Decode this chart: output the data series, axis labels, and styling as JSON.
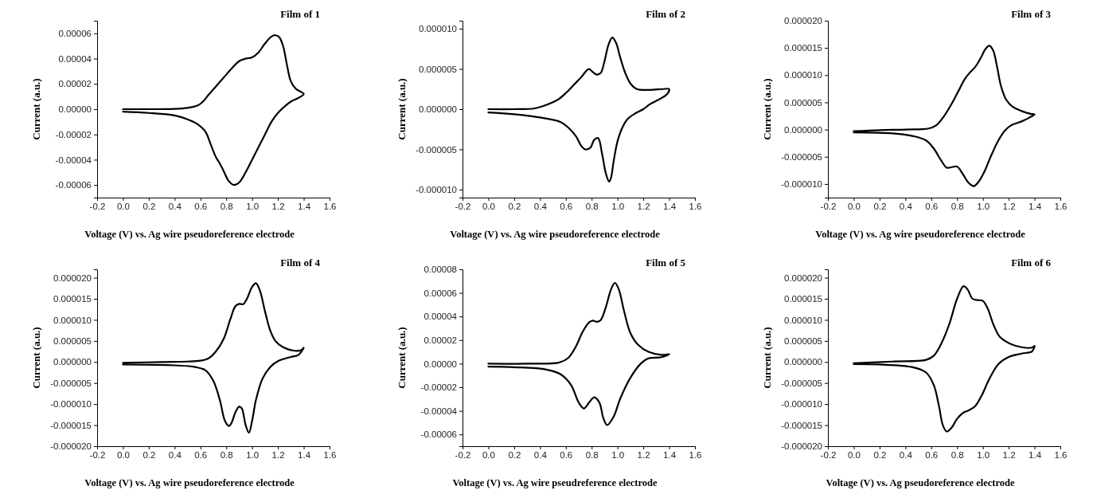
{
  "chart_data": [
    {
      "type": "line",
      "title": "Film of 1",
      "xlabel": "Voltage (V) vs. Ag wire pseudoreference electrode",
      "ylabel": "Current (a.u.)",
      "xlim": [
        -0.2,
        1.6
      ],
      "ylim": [
        -7e-05,
        7e-05
      ],
      "xticks": [
        {
          "value": -0.2,
          "label": "-0.2"
        },
        {
          "value": 0,
          "label": "0.0"
        },
        {
          "value": 0.2,
          "label": "0.2"
        },
        {
          "value": 0.4,
          "label": "0.4"
        },
        {
          "value": 0.6,
          "label": "0.6"
        },
        {
          "value": 0.8,
          "label": "0.8"
        },
        {
          "value": 1,
          "label": "1.0"
        },
        {
          "value": 1.2,
          "label": "1.2"
        },
        {
          "value": 1.4,
          "label": "1.4"
        },
        {
          "value": 1.6,
          "label": "1.6"
        }
      ],
      "yticks": [
        {
          "value": -6e-05,
          "label": "-0.00006"
        },
        {
          "value": -4e-05,
          "label": "-0.00004"
        },
        {
          "value": -2e-05,
          "label": "-0.00002"
        },
        {
          "value": 0,
          "label": "0.00000"
        },
        {
          "value": 2e-05,
          "label": "0.00002"
        },
        {
          "value": 4e-05,
          "label": "0.00004"
        },
        {
          "value": 6e-05,
          "label": "0.00006"
        }
      ],
      "series": [
        {
          "color": "#000000",
          "x": [
            0,
            0.2,
            0.4,
            0.5,
            0.58,
            0.62,
            0.66,
            0.72,
            0.78,
            0.84,
            0.9,
            0.95,
            1.0,
            1.05,
            1.1,
            1.15,
            1.18,
            1.21,
            1.24,
            1.27,
            1.3,
            1.34,
            1.4,
            1.36,
            1.3,
            1.25,
            1.2,
            1.15,
            1.1,
            1.05,
            1.0,
            0.95,
            0.9,
            0.86,
            0.82,
            0.78,
            0.75,
            0.72,
            0.68,
            0.64,
            0.58,
            0.5,
            0.4,
            0.2,
            0
          ],
          "values": [
            0,
            0,
            2e-07,
            1e-06,
            3e-06,
            6e-06,
            1.1e-05,
            1.8e-05,
            2.5e-05,
            3.2e-05,
            3.8e-05,
            4e-05,
            4.1e-05,
            4.5e-05,
            5.2e-05,
            5.75e-05,
            5.85e-05,
            5.7e-05,
            5e-05,
            3.5e-05,
            2.2e-05,
            1.6e-05,
            1.2e-05,
            9e-06,
            6e-06,
            2e-06,
            -3e-06,
            -1e-05,
            -2e-05,
            -3e-05,
            -4e-05,
            -5e-05,
            -5.8e-05,
            -6e-05,
            -5.7e-05,
            -4.9e-05,
            -4.3e-05,
            -3.8e-05,
            -2.8e-05,
            -1.8e-05,
            -1.2e-05,
            -8e-06,
            -5e-06,
            -3e-06,
            -2e-06
          ]
        }
      ]
    },
    {
      "type": "line",
      "title": "Film of 2",
      "xlabel": "Voltage (V) vs. Ag wire pseudoreference electrode",
      "ylabel": "Current (a.u.)",
      "xlim": [
        -0.2,
        1.6
      ],
      "ylim": [
        -1.1e-05,
        1.1e-05
      ],
      "xticks": [
        {
          "value": -0.2,
          "label": "-0.2"
        },
        {
          "value": 0,
          "label": "0.0"
        },
        {
          "value": 0.2,
          "label": "0.2"
        },
        {
          "value": 0.4,
          "label": "0.4"
        },
        {
          "value": 0.6,
          "label": "0.6"
        },
        {
          "value": 0.8,
          "label": "0.8"
        },
        {
          "value": 1,
          "label": "1.0"
        },
        {
          "value": 1.2,
          "label": "1.2"
        },
        {
          "value": 1.4,
          "label": "1.4"
        },
        {
          "value": 1.6,
          "label": "1.6"
        }
      ],
      "yticks": [
        {
          "value": -1e-05,
          "label": "-0.000010"
        },
        {
          "value": -5e-06,
          "label": "-0.000005"
        },
        {
          "value": 0,
          "label": "0.000000"
        },
        {
          "value": 5e-06,
          "label": "0.000005"
        },
        {
          "value": 1e-05,
          "label": "0.000010"
        }
      ],
      "series": [
        {
          "color": "#000000",
          "x": [
            0,
            0.2,
            0.36,
            0.46,
            0.54,
            0.6,
            0.66,
            0.72,
            0.76,
            0.78,
            0.81,
            0.84,
            0.87,
            0.9,
            0.93,
            0.96,
            0.99,
            1.02,
            1.06,
            1.1,
            1.15,
            1.25,
            1.35,
            1.4,
            1.38,
            1.32,
            1.25,
            1.2,
            1.14,
            1.08,
            1.04,
            1.0,
            0.97,
            0.95,
            0.935,
            0.91,
            0.88,
            0.85,
            0.82,
            0.79,
            0.75,
            0.72,
            0.68,
            0.62,
            0.56,
            0.46,
            0.3,
            0.1,
            0
          ],
          "values": [
            0,
            0,
            1e-07,
            6e-07,
            1.2e-06,
            2e-06,
            3e-06,
            4e-06,
            4.8e-06,
            5e-06,
            4.6e-06,
            4.3e-06,
            4.5e-06,
            6e-06,
            8e-06,
            8.9e-06,
            8.2e-06,
            6.5e-06,
            4.5e-06,
            3.2e-06,
            2.5e-06,
            2.4e-06,
            2.5e-06,
            2.5e-06,
            1.8e-06,
            1.2e-06,
            6e-07,
            0,
            -5e-07,
            -1.2e-06,
            -2.2e-06,
            -4e-06,
            -6.5e-06,
            -8.5e-06,
            -9e-06,
            -8e-06,
            -5.5e-06,
            -3.6e-06,
            -3.8e-06,
            -4.8e-06,
            -5e-06,
            -4.6e-06,
            -3.4e-06,
            -2.3e-06,
            -1.6e-06,
            -1.2e-06,
            -8e-07,
            -5e-07,
            -4e-07
          ]
        }
      ]
    },
    {
      "type": "line",
      "title": "Film of 3",
      "xlabel": "Voltage (V) vs. Ag wire pseudoreference electrode",
      "ylabel": "Current (a.u.)",
      "xlim": [
        -0.2,
        1.6
      ],
      "ylim": [
        -1.25e-05,
        2e-05
      ],
      "xticks": [
        {
          "value": -0.2,
          "label": "-0.2"
        },
        {
          "value": 0,
          "label": "0.0"
        },
        {
          "value": 0.2,
          "label": "0.2"
        },
        {
          "value": 0.4,
          "label": "0.4"
        },
        {
          "value": 0.6,
          "label": "0.6"
        },
        {
          "value": 0.8,
          "label": "0.8"
        },
        {
          "value": 1,
          "label": "1.0"
        },
        {
          "value": 1.2,
          "label": "1.2"
        },
        {
          "value": 1.4,
          "label": "1.4"
        },
        {
          "value": 1.6,
          "label": "1.6"
        }
      ],
      "yticks": [
        {
          "value": -1e-05,
          "label": "-0.000010"
        },
        {
          "value": -5e-06,
          "label": "-0.000005"
        },
        {
          "value": 0,
          "label": "0.000000"
        },
        {
          "value": 5e-06,
          "label": "0.000005"
        },
        {
          "value": 1e-05,
          "label": "0.000010"
        },
        {
          "value": 1.5e-05,
          "label": "0.000015"
        },
        {
          "value": 2e-05,
          "label": "0.000020"
        }
      ],
      "series": [
        {
          "color": "#000000",
          "x": [
            0,
            0.2,
            0.4,
            0.58,
            0.64,
            0.7,
            0.76,
            0.82,
            0.86,
            0.9,
            0.94,
            0.98,
            1.02,
            1.05,
            1.08,
            1.11,
            1.14,
            1.18,
            1.23,
            1.3,
            1.37,
            1.4,
            1.36,
            1.3,
            1.22,
            1.17,
            1.12,
            1.06,
            1.01,
            0.96,
            0.93,
            0.89,
            0.84,
            0.8,
            0.76,
            0.72,
            0.68,
            0.62,
            0.56,
            0.46,
            0.3,
            0
          ],
          "values": [
            -3e-07,
            -1e-07,
            0,
            2e-07,
            8e-07,
            2.5e-06,
            4.8e-06,
            7.5e-06,
            9.3e-06,
            1.05e-05,
            1.15e-05,
            1.3e-05,
            1.48e-05,
            1.54e-05,
            1.45e-05,
            1.15e-05,
            8e-06,
            5.5e-06,
            4.2e-06,
            3.4e-06,
            2.9e-06,
            2.8e-06,
            2.2e-06,
            1.5e-06,
            8e-07,
            -2e-07,
            -2e-06,
            -5e-06,
            -7.8e-06,
            -9.8e-06,
            -1.04e-05,
            -9.8e-06,
            -8e-06,
            -6.8e-06,
            -6.9e-06,
            -7e-06,
            -5.8e-06,
            -3.5e-06,
            -2e-06,
            -1.2e-06,
            -7e-07,
            -5e-07
          ]
        }
      ]
    },
    {
      "type": "line",
      "title": "Film of 4",
      "xlabel": "Voltage (V) vs. Ag wire pseudoreference electrode",
      "ylabel": "Current (a.u.)",
      "xlim": [
        -0.2,
        1.6
      ],
      "ylim": [
        -2e-05,
        2.2e-05
      ],
      "xticks": [
        {
          "value": -0.2,
          "label": "-0.2"
        },
        {
          "value": 0,
          "label": "0.0"
        },
        {
          "value": 0.2,
          "label": "0.2"
        },
        {
          "value": 0.4,
          "label": "0.4"
        },
        {
          "value": 0.6,
          "label": "0.6"
        },
        {
          "value": 0.8,
          "label": "0.8"
        },
        {
          "value": 1,
          "label": "1.0"
        },
        {
          "value": 1.2,
          "label": "1.2"
        },
        {
          "value": 1.4,
          "label": "1.4"
        },
        {
          "value": 1.6,
          "label": "1.6"
        }
      ],
      "yticks": [
        {
          "value": -2e-05,
          "label": "-0.000020"
        },
        {
          "value": -1.5e-05,
          "label": "-0.000015"
        },
        {
          "value": -1e-05,
          "label": "-0.000010"
        },
        {
          "value": -5e-06,
          "label": "-0.000005"
        },
        {
          "value": 0,
          "label": "0.000000"
        },
        {
          "value": 5e-06,
          "label": "0.000005"
        },
        {
          "value": 1e-05,
          "label": "0.000010"
        },
        {
          "value": 1.5e-05,
          "label": "0.000015"
        },
        {
          "value": 2e-05,
          "label": "0.000020"
        }
      ],
      "series": [
        {
          "color": "#000000",
          "x": [
            0,
            0.3,
            0.5,
            0.6,
            0.66,
            0.72,
            0.78,
            0.83,
            0.87,
            0.9,
            0.93,
            0.96,
            1.0,
            1.03,
            1.06,
            1.1,
            1.14,
            1.18,
            1.24,
            1.32,
            1.38,
            1.4,
            1.36,
            1.3,
            1.2,
            1.14,
            1.08,
            1.03,
            1.0,
            0.975,
            0.95,
            0.92,
            0.9,
            0.87,
            0.84,
            0.82,
            0.79,
            0.75,
            0.7,
            0.64,
            0.56,
            0.4,
            0
          ],
          "values": [
            -2e-07,
            0,
            1e-07,
            3e-07,
            8e-07,
            2.5e-06,
            5.5e-06,
            1e-05,
            1.32e-05,
            1.38e-05,
            1.37e-05,
            1.5e-05,
            1.78e-05,
            1.87e-05,
            1.7e-05,
            1.2e-05,
            7.5e-06,
            5e-06,
            3.5e-06,
            2.7e-06,
            2.8e-06,
            3.4e-06,
            1.7e-06,
            1.2e-06,
            2e-07,
            -1.2e-06,
            -4e-06,
            -9e-06,
            -1.4e-05,
            -1.68e-05,
            -1.5e-05,
            -1.1e-05,
            -1.06e-05,
            -1.2e-05,
            -1.45e-05,
            -1.52e-05,
            -1.4e-05,
            -9e-06,
            -4.5e-06,
            -2e-06,
            -1.2e-06,
            -8e-07,
            -6e-07
          ]
        }
      ]
    },
    {
      "type": "line",
      "title": "Film of 5",
      "xlabel": "Voltage (V) vs. Ag wire pseudreference electrode",
      "ylabel": "Current (a.u.)",
      "xlim": [
        -0.2,
        1.6
      ],
      "ylim": [
        -7e-05,
        8e-05
      ],
      "xticks": [
        {
          "value": -0.2,
          "label": "-0.2"
        },
        {
          "value": 0,
          "label": "0.0"
        },
        {
          "value": 0.2,
          "label": "0.2"
        },
        {
          "value": 0.4,
          "label": "0.4"
        },
        {
          "value": 0.6,
          "label": "0.6"
        },
        {
          "value": 0.8,
          "label": "0.8"
        },
        {
          "value": 1,
          "label": "1.0"
        },
        {
          "value": 1.2,
          "label": "1.2"
        },
        {
          "value": 1.4,
          "label": "1.4"
        },
        {
          "value": 1.6,
          "label": "1.6"
        }
      ],
      "yticks": [
        {
          "value": -6e-05,
          "label": "-0.00006"
        },
        {
          "value": -4e-05,
          "label": "-0.00004"
        },
        {
          "value": -2e-05,
          "label": "-0.00002"
        },
        {
          "value": 0,
          "label": "0.00000"
        },
        {
          "value": 2e-05,
          "label": "0.00002"
        },
        {
          "value": 4e-05,
          "label": "0.00004"
        },
        {
          "value": 6e-05,
          "label": "0.00006"
        },
        {
          "value": 8e-05,
          "label": "0.00008"
        }
      ],
      "series": [
        {
          "color": "#000000",
          "x": [
            0,
            0.3,
            0.55,
            0.62,
            0.68,
            0.73,
            0.78,
            0.81,
            0.84,
            0.87,
            0.91,
            0.95,
            0.98,
            1.01,
            1.05,
            1.1,
            1.16,
            1.24,
            1.34,
            1.4,
            1.34,
            1.24,
            1.18,
            1.1,
            1.02,
            0.97,
            0.92,
            0.89,
            0.86,
            0.82,
            0.78,
            0.74,
            0.7,
            0.64,
            0.56,
            0.45,
            0.2,
            0
          ],
          "values": [
            0,
            0,
            1e-06,
            5e-06,
            1.5e-05,
            2.7e-05,
            3.5e-05,
            3.65e-05,
            3.55e-05,
            3.7e-05,
            4.8e-05,
            6.3e-05,
            6.85e-05,
            6.3e-05,
            4.5e-05,
            2.6e-05,
            1.6e-05,
            1e-05,
            7.5e-06,
            8e-06,
            5.5e-06,
            4.5e-06,
            0,
            -1.2e-05,
            -3e-05,
            -4.5e-05,
            -5.2e-05,
            -4.6e-05,
            -3.3e-05,
            -2.85e-05,
            -3.3e-05,
            -3.8e-05,
            -3.3e-05,
            -1.8e-05,
            -9e-06,
            -5e-06,
            -3e-06,
            -2.5e-06
          ]
        }
      ]
    },
    {
      "type": "line",
      "title": "Film of 6",
      "xlabel": "Voltage (V) vs. Ag pseudoreference electrode",
      "ylabel": "Current (a.u.)",
      "xlim": [
        -0.2,
        1.6
      ],
      "ylim": [
        -2e-05,
        2.2e-05
      ],
      "xticks": [
        {
          "value": -0.2,
          "label": "-0.2"
        },
        {
          "value": 0,
          "label": "0.0"
        },
        {
          "value": 0.2,
          "label": "0.2"
        },
        {
          "value": 0.4,
          "label": "0.4"
        },
        {
          "value": 0.6,
          "label": "0.6"
        },
        {
          "value": 0.8,
          "label": "0.8"
        },
        {
          "value": 1,
          "label": "1.0"
        },
        {
          "value": 1.2,
          "label": "1.2"
        },
        {
          "value": 1.4,
          "label": "1.4"
        },
        {
          "value": 1.6,
          "label": "1.6"
        }
      ],
      "yticks": [
        {
          "value": -2e-05,
          "label": "-0.000020"
        },
        {
          "value": -1.5e-05,
          "label": "-0.000015"
        },
        {
          "value": -1e-05,
          "label": "-0.000010"
        },
        {
          "value": -5e-06,
          "label": "-0.000005"
        },
        {
          "value": 0,
          "label": "0.000000"
        },
        {
          "value": 5e-06,
          "label": "0.000005"
        },
        {
          "value": 1e-05,
          "label": "0.000010"
        },
        {
          "value": 1.5e-05,
          "label": "0.000015"
        },
        {
          "value": 2e-05,
          "label": "0.000020"
        }
      ],
      "series": [
        {
          "color": "#000000",
          "x": [
            0,
            0.3,
            0.56,
            0.62,
            0.68,
            0.74,
            0.8,
            0.85,
            0.88,
            0.92,
            0.96,
            1.0,
            1.04,
            1.08,
            1.13,
            1.2,
            1.3,
            1.38,
            1.4,
            1.38,
            1.3,
            1.2,
            1.12,
            1.05,
            0.99,
            0.94,
            0.89,
            0.85,
            0.8,
            0.76,
            0.72,
            0.69,
            0.66,
            0.62,
            0.56,
            0.45,
            0.2,
            0
          ],
          "values": [
            -3e-07,
            1e-07,
            5e-07,
            1.5e-06,
            4.5e-06,
            9e-06,
            1.5e-05,
            1.8e-05,
            1.73e-05,
            1.5e-05,
            1.47e-05,
            1.45e-05,
            1.25e-05,
            9e-06,
            6e-06,
            4.5e-06,
            3.5e-06,
            3.4e-06,
            3.8e-06,
            2.5e-06,
            2e-06,
            1.2e-06,
            -5e-07,
            -4e-06,
            -8e-06,
            -1.05e-05,
            -1.15e-05,
            -1.2e-05,
            -1.35e-05,
            -1.55e-05,
            -1.65e-05,
            -1.5e-05,
            -1.05e-05,
            -5.5e-06,
            -2.5e-06,
            -1.2e-06,
            -6e-07,
            -5e-07
          ]
        }
      ]
    }
  ]
}
